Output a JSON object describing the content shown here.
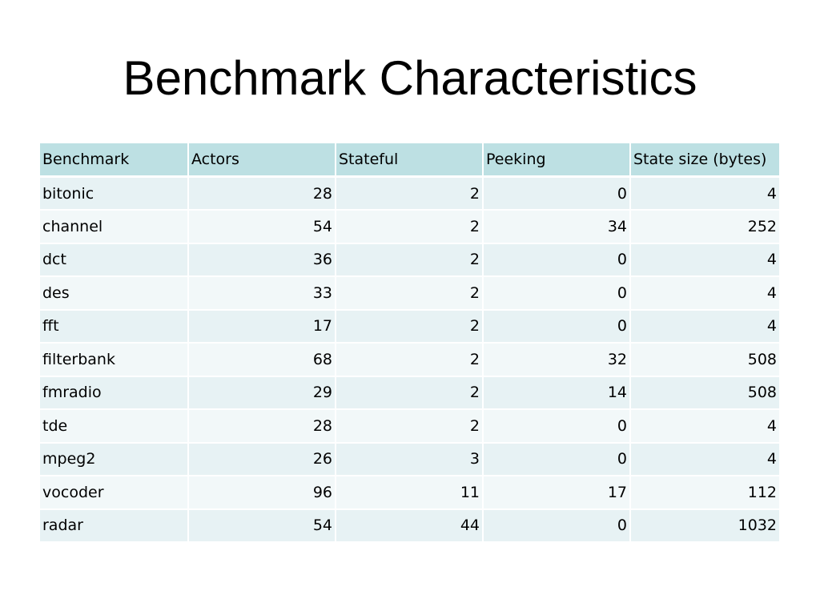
{
  "slide": {
    "title": "Benchmark Characteristics"
  },
  "table": {
    "headers": [
      "Benchmark",
      "Actors",
      "Stateful",
      "Peeking",
      "State size (bytes)"
    ],
    "rows": [
      [
        "bitonic",
        "28",
        "2",
        "0",
        "4"
      ],
      [
        "channel",
        "54",
        "2",
        "34",
        "252"
      ],
      [
        "dct",
        "36",
        "2",
        "0",
        "4"
      ],
      [
        "des",
        "33",
        "2",
        "0",
        "4"
      ],
      [
        "fft",
        "17",
        "2",
        "0",
        "4"
      ],
      [
        "filterbank",
        "68",
        "2",
        "32",
        "508"
      ],
      [
        "fmradio",
        "29",
        "2",
        "14",
        "508"
      ],
      [
        "tde",
        "28",
        "2",
        "0",
        "4"
      ],
      [
        "mpeg2",
        "26",
        "3",
        "0",
        "4"
      ],
      [
        "vocoder",
        "96",
        "11",
        "17",
        "112"
      ],
      [
        "radar",
        "54",
        "44",
        "0",
        "1032"
      ]
    ]
  },
  "colors": {
    "header_bg": "#bde0e3",
    "row_odd_bg": "#e7f2f4",
    "row_even_bg": "#f2f8f9"
  }
}
